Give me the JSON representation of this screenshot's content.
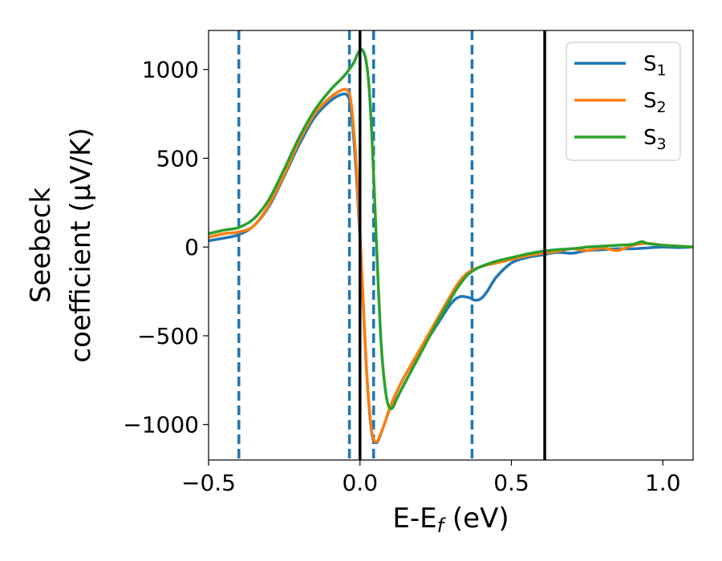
{
  "chart_data": {
    "type": "line",
    "title": "",
    "xlabel": "E-E",
    "xlabel_sub": "f",
    "xlabel_unit": " (eV)",
    "ylabel_line1": "Seebeck",
    "ylabel_line2": "coefficient  (μV/K)",
    "xlim": [
      -0.5,
      1.1
    ],
    "ylim": [
      -1200,
      1220
    ],
    "xticks": [
      -0.5,
      0.0,
      0.5,
      1.0
    ],
    "xtick_labels": [
      "−0.5",
      "0.0",
      "0.5",
      "1.0"
    ],
    "yticks": [
      -1000,
      -500,
      0,
      500,
      1000
    ],
    "ytick_labels": [
      "−1000",
      "−500",
      "0",
      "500",
      "1000"
    ],
    "grid": false,
    "legend_position": "top-right",
    "vlines_dashed": [
      -0.4,
      -0.035,
      0.045,
      0.37
    ],
    "vlines_dashed_color": "#1f77b4",
    "vlines_solid": [
      0.0,
      0.61
    ],
    "vlines_solid_color": "#000000",
    "series": [
      {
        "name": "S",
        "name_sub": "1",
        "color": "#1f77b4",
        "x": [
          -0.5,
          -0.45,
          -0.4,
          -0.35,
          -0.3,
          -0.25,
          -0.2,
          -0.15,
          -0.1,
          -0.06,
          -0.04,
          -0.03,
          -0.02,
          -0.01,
          0.0,
          0.01,
          0.02,
          0.03,
          0.04,
          0.05,
          0.06,
          0.08,
          0.1,
          0.12,
          0.15,
          0.2,
          0.25,
          0.3,
          0.33,
          0.36,
          0.38,
          0.4,
          0.42,
          0.45,
          0.5,
          0.55,
          0.6,
          0.65,
          0.7,
          0.75,
          0.8,
          0.85,
          0.9,
          0.95,
          1.0,
          1.05,
          1.1
        ],
        "y": [
          35,
          50,
          70,
          120,
          230,
          400,
          580,
          730,
          820,
          860,
          850,
          780,
          600,
          350,
          50,
          -300,
          -650,
          -900,
          -1060,
          -1100,
          -1090,
          -1000,
          -900,
          -820,
          -720,
          -580,
          -450,
          -320,
          -280,
          -285,
          -300,
          -290,
          -250,
          -170,
          -90,
          -60,
          -45,
          -30,
          -35,
          -20,
          -15,
          -10,
          -10,
          -5,
          0,
          -3,
          0
        ]
      },
      {
        "name": "S",
        "name_sub": "2",
        "color": "#ff7f0e",
        "x": [
          -0.5,
          -0.45,
          -0.4,
          -0.35,
          -0.3,
          -0.25,
          -0.2,
          -0.15,
          -0.1,
          -0.06,
          -0.04,
          -0.03,
          -0.02,
          -0.01,
          0.0,
          0.01,
          0.02,
          0.03,
          0.04,
          0.05,
          0.06,
          0.08,
          0.1,
          0.12,
          0.15,
          0.2,
          0.25,
          0.3,
          0.33,
          0.36,
          0.4,
          0.45,
          0.5,
          0.55,
          0.6,
          0.65,
          0.7,
          0.75,
          0.8,
          0.85,
          0.9,
          0.95,
          1.0,
          1.05,
          1.1
        ],
        "y": [
          55,
          75,
          85,
          120,
          240,
          410,
          600,
          750,
          840,
          885,
          880,
          820,
          650,
          400,
          80,
          -280,
          -640,
          -890,
          -1050,
          -1095,
          -1085,
          -1000,
          -900,
          -820,
          -720,
          -570,
          -420,
          -270,
          -190,
          -140,
          -110,
          -90,
          -70,
          -50,
          -35,
          -25,
          -10,
          -20,
          -5,
          -20,
          10,
          20,
          10,
          5,
          0
        ]
      },
      {
        "name": "S",
        "name_sub": "3",
        "color": "#2ca02c",
        "x": [
          -0.5,
          -0.45,
          -0.4,
          -0.35,
          -0.3,
          -0.25,
          -0.2,
          -0.15,
          -0.1,
          -0.06,
          -0.04,
          -0.02,
          -0.01,
          0.0,
          0.01,
          0.02,
          0.03,
          0.04,
          0.05,
          0.06,
          0.07,
          0.08,
          0.09,
          0.1,
          0.11,
          0.12,
          0.15,
          0.2,
          0.25,
          0.3,
          0.33,
          0.36,
          0.4,
          0.45,
          0.5,
          0.55,
          0.6,
          0.65,
          0.7,
          0.75,
          0.8,
          0.85,
          0.9,
          0.93,
          0.95,
          1.0,
          1.05,
          1.1
        ],
        "y": [
          75,
          95,
          110,
          160,
          270,
          440,
          620,
          770,
          880,
          950,
          990,
          1040,
          1080,
          1110,
          1105,
          1050,
          900,
          600,
          200,
          -200,
          -550,
          -750,
          -870,
          -910,
          -900,
          -860,
          -760,
          -600,
          -440,
          -290,
          -210,
          -150,
          -110,
          -80,
          -60,
          -40,
          -25,
          -15,
          -10,
          0,
          5,
          10,
          15,
          30,
          20,
          10,
          5,
          0
        ]
      }
    ]
  }
}
